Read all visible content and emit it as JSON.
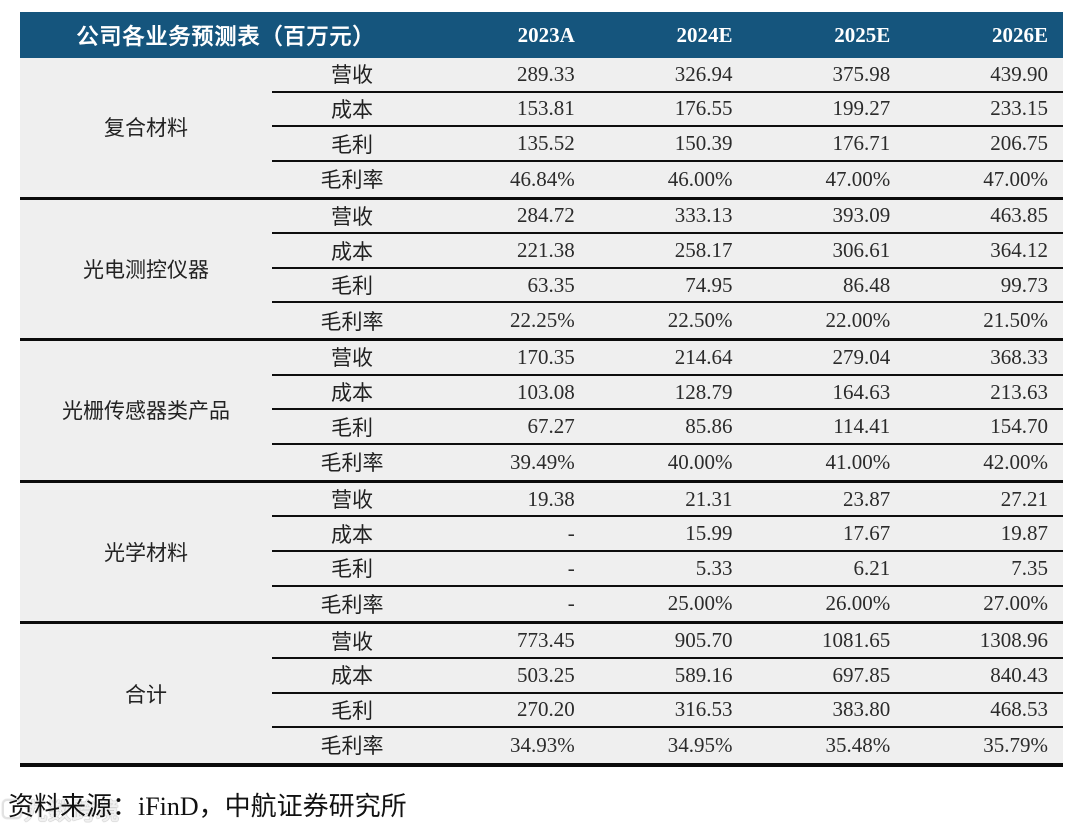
{
  "table": {
    "title": "公司各业务预测表（百万元）",
    "year_columns": [
      "2023A",
      "2024E",
      "2025E",
      "2026E"
    ],
    "metric_labels": [
      "营收",
      "成本",
      "毛利",
      "毛利率"
    ],
    "sections": [
      {
        "name": "复合材料",
        "rows": [
          [
            "289.33",
            "326.94",
            "375.98",
            "439.90"
          ],
          [
            "153.81",
            "176.55",
            "199.27",
            "233.15"
          ],
          [
            "135.52",
            "150.39",
            "176.71",
            "206.75"
          ],
          [
            "46.84%",
            "46.00%",
            "47.00%",
            "47.00%"
          ]
        ]
      },
      {
        "name": "光电测控仪器",
        "rows": [
          [
            "284.72",
            "333.13",
            "393.09",
            "463.85"
          ],
          [
            "221.38",
            "258.17",
            "306.61",
            "364.12"
          ],
          [
            "63.35",
            "74.95",
            "86.48",
            "99.73"
          ],
          [
            "22.25%",
            "22.50%",
            "22.00%",
            "21.50%"
          ]
        ]
      },
      {
        "name": "光栅传感器类产品",
        "rows": [
          [
            "170.35",
            "214.64",
            "279.04",
            "368.33"
          ],
          [
            "103.08",
            "128.79",
            "164.63",
            "213.63"
          ],
          [
            "67.27",
            "85.86",
            "114.41",
            "154.70"
          ],
          [
            "39.49%",
            "40.00%",
            "41.00%",
            "42.00%"
          ]
        ]
      },
      {
        "name": "光学材料",
        "rows": [
          [
            "19.38",
            "21.31",
            "23.87",
            "27.21"
          ],
          [
            "-",
            "15.99",
            "17.67",
            "19.87"
          ],
          [
            "-",
            "5.33",
            "6.21",
            "7.35"
          ],
          [
            "-",
            "25.00%",
            "26.00%",
            "27.00%"
          ]
        ]
      },
      {
        "name": "合计",
        "rows": [
          [
            "773.45",
            "905.70",
            "1081.65",
            "1308.96"
          ],
          [
            "503.25",
            "589.16",
            "697.85",
            "840.43"
          ],
          [
            "270.20",
            "316.53",
            "383.80",
            "468.53"
          ],
          [
            "34.93%",
            "34.95%",
            "35.48%",
            "35.79%"
          ]
        ]
      }
    ]
  },
  "footer": {
    "source": "资料来源：iFinD，中航证券研究所"
  },
  "watermark": {
    "text": "九数跨境"
  },
  "colors": {
    "header_bg": "#15557D",
    "header_text": "#FFFFFF",
    "row_bg": "#EFEFEF",
    "border": "#0B0B0B"
  }
}
